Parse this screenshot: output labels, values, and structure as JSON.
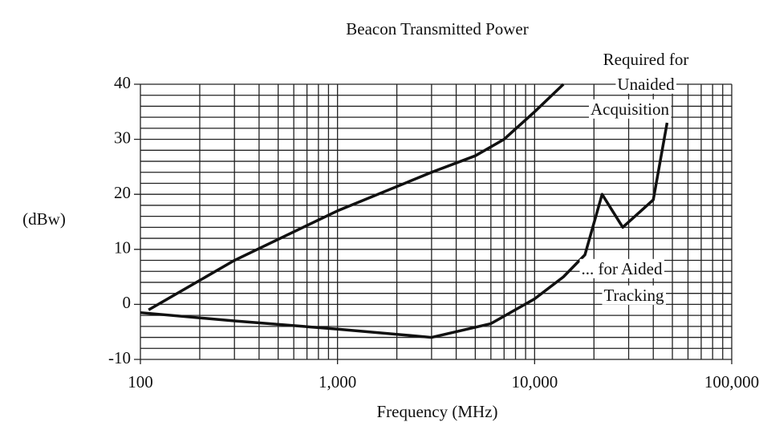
{
  "chart_data": {
    "type": "line",
    "title": "Beacon Transmitted Power",
    "x_label": "Frequency (MHz)",
    "y_label": "(dBw)",
    "xlog": true,
    "xlim": [
      100,
      100000
    ],
    "xticks": [
      100,
      {
        "value": 1000,
        "label": "1,000"
      },
      {
        "value": 10000,
        "label": "10,000"
      },
      {
        "value": 100000,
        "label": "100,000"
      }
    ],
    "ylim": [
      -10,
      40
    ],
    "yticks": [
      -10,
      0,
      10,
      20,
      30,
      40
    ],
    "grid": true,
    "minor_grid": true,
    "series": [
      {
        "color": "#111",
        "x": [
          110,
          300,
          1000,
          3000,
          5000,
          7000,
          10000,
          14000
        ],
        "values": [
          -1,
          8,
          17,
          24,
          27,
          30,
          35,
          40
        ]
      },
      {
        "color": "#111",
        "x": [
          100,
          300,
          1000,
          3000,
          6000,
          10000,
          14000,
          18000,
          22000,
          28000,
          40000,
          47000
        ],
        "values": [
          -1.5,
          -3,
          -4.5,
          -6,
          -3.5,
          1,
          5,
          9,
          20,
          14,
          19,
          33
        ]
      }
    ],
    "annotations": [
      {
        "lines": [
          "Required for",
          "Unaided",
          "Acquisition"
        ]
      },
      {
        "lines": [
          "... for Aided",
          "Tracking"
        ]
      }
    ]
  }
}
